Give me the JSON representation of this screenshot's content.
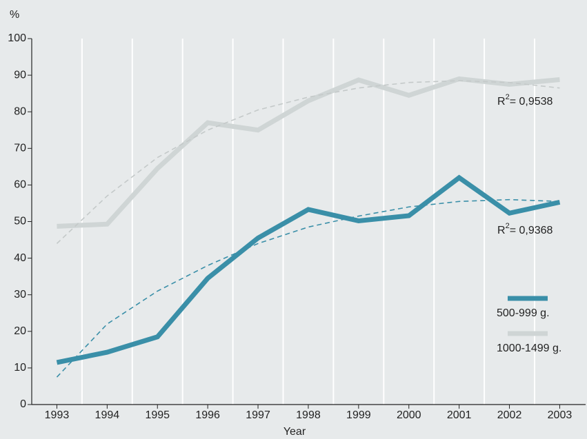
{
  "chart_data": {
    "type": "line",
    "y_unit_label": "%",
    "x_label": "Year",
    "categories": [
      "1993",
      "1994",
      "1995",
      "1996",
      "1997",
      "1998",
      "1999",
      "2000",
      "2001",
      "2002",
      "2003"
    ],
    "series": [
      {
        "name": "500-999 g.",
        "color": "#3a8fa8",
        "values": [
          11.5,
          14.3,
          18.5,
          34.5,
          45.5,
          53.3,
          50.2,
          51.6,
          62,
          52.3,
          55.3
        ]
      },
      {
        "name": "1000-1499 g.",
        "color": "#cfd5d5",
        "values": [
          48.7,
          49.3,
          64.5,
          77,
          75,
          83,
          88.7,
          84.5,
          89,
          87.5,
          88.8
        ]
      }
    ],
    "trendlines": [
      {
        "color": "#3a8fa8",
        "values": [
          7.5,
          22,
          31,
          38,
          44,
          48.5,
          51.5,
          54,
          55.5,
          56,
          55.5
        ],
        "r2_label": {
          "base": "R",
          "sup": "2",
          "text": "= 0,9368"
        }
      },
      {
        "color": "#c4c9c9",
        "values": [
          44,
          57,
          67.5,
          75,
          80.5,
          84,
          86.5,
          88,
          88.5,
          88,
          86.5
        ],
        "r2_label": {
          "base": "R",
          "sup": "2",
          "text": "= 0,9538"
        }
      }
    ],
    "ylim": [
      0,
      100
    ],
    "yticks": [
      0,
      10,
      20,
      30,
      40,
      50,
      60,
      70,
      80,
      90,
      100
    ],
    "grid": "vertical",
    "legend": "lower right"
  }
}
